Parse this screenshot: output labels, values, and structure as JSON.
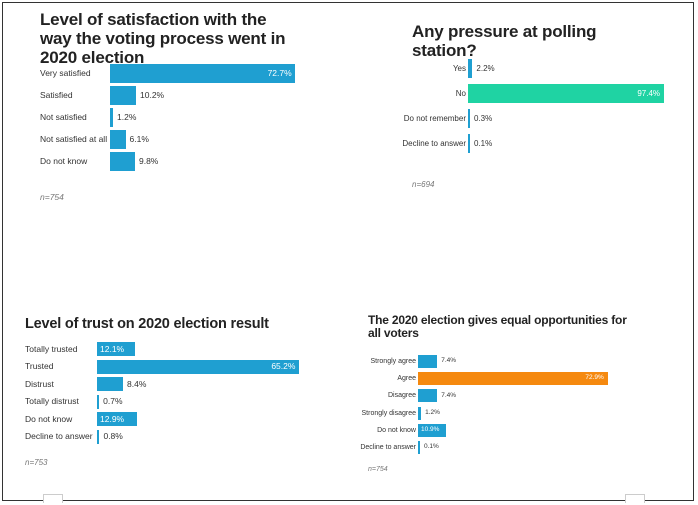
{
  "chart_data": [
    {
      "type": "bar",
      "orientation": "horizontal",
      "title": "Level of satisfaction with the way the voting process went in 2020 election",
      "categories": [
        "Very satisfied",
        "Satisfied",
        "Not satisfied",
        "Not satisfied at all",
        "Do not know"
      ],
      "values": [
        72.7,
        10.2,
        1.2,
        6.1,
        9.8
      ],
      "value_labels": [
        "72.7%",
        "10.2%",
        "1.2%",
        "6.1%",
        "9.8%"
      ],
      "bar_colors": [
        "#1f9fd1",
        "#1f9fd1",
        "#1f9fd1",
        "#1f9fd1",
        "#1f9fd1"
      ],
      "note": "n=754"
    },
    {
      "type": "bar",
      "orientation": "horizontal",
      "title": "Any pressure at polling station?",
      "categories": [
        "Yes",
        "No",
        "Do not remember",
        "Decline to answer"
      ],
      "values": [
        2.2,
        97.4,
        0.3,
        0.1
      ],
      "value_labels": [
        "2.2%",
        "97.4%",
        "0.3%",
        "0.1%"
      ],
      "bar_colors": [
        "#1f9fd1",
        "#1fd3a3",
        "#1f9fd1",
        "#1f9fd1"
      ],
      "note": "n=694"
    },
    {
      "type": "bar",
      "orientation": "horizontal",
      "title": "Level of trust on 2020 election result",
      "categories": [
        "Totally trusted",
        "Trusted",
        "Distrust",
        "Totally distrust",
        "Do not know",
        "Decline to answer"
      ],
      "values": [
        12.1,
        65.2,
        8.4,
        0.7,
        12.9,
        0.8
      ],
      "value_labels": [
        "12.1%",
        "65.2%",
        "8.4%",
        "0.7%",
        "12.9%",
        "0.8%"
      ],
      "bar_colors": [
        "#1f9fd1",
        "#1f9fd1",
        "#1f9fd1",
        "#1f9fd1",
        "#1f9fd1",
        "#1f9fd1"
      ],
      "note": "n=753"
    },
    {
      "type": "bar",
      "orientation": "horizontal",
      "title": "The 2020 election gives equal opportunities for all voters",
      "categories": [
        "Strongly agree",
        "Agree",
        "Disagree",
        "Strongly disagree",
        "Do not know",
        "Decline to answer"
      ],
      "values": [
        7.4,
        72.9,
        7.4,
        1.2,
        10.9,
        0.1
      ],
      "value_labels": [
        "7.4%",
        "72.9%",
        "7.4%",
        "1.2%",
        "10.9%",
        "0.1%"
      ],
      "bar_colors": [
        "#1f9fd1",
        "#f5890f",
        "#1f9fd1",
        "#1f9fd1",
        "#1f9fd1",
        "#1f9fd1"
      ],
      "note": "n=754"
    }
  ]
}
